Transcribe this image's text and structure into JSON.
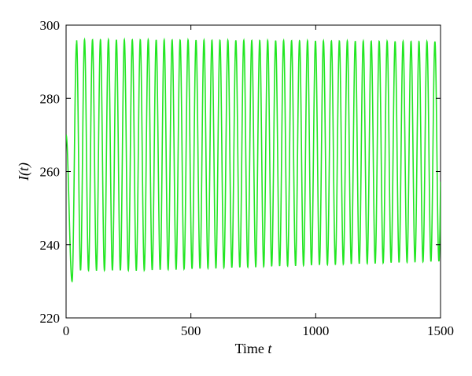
{
  "chart_data": {
    "type": "line",
    "xlabel": "Time t",
    "ylabel": "I(t)",
    "xlim": [
      0,
      1500
    ],
    "ylim": [
      220,
      300
    ],
    "xticks": [
      0,
      500,
      1000,
      1500
    ],
    "yticks": [
      220,
      240,
      260,
      280,
      300
    ],
    "grid": false,
    "legend": "none",
    "series": [
      {
        "color": "#22e622",
        "start": {
          "t": 0,
          "I": 270
        },
        "first_min": {
          "t": 24,
          "I": 230
        },
        "first_max": {
          "t": 42,
          "I": 295
        },
        "period": 31.9,
        "cycles": 46,
        "early_range": [
          233,
          296
        ],
        "late_range": [
          235.5,
          295.5
        ],
        "end": {
          "t": 1500,
          "I": 274
        }
      }
    ]
  }
}
